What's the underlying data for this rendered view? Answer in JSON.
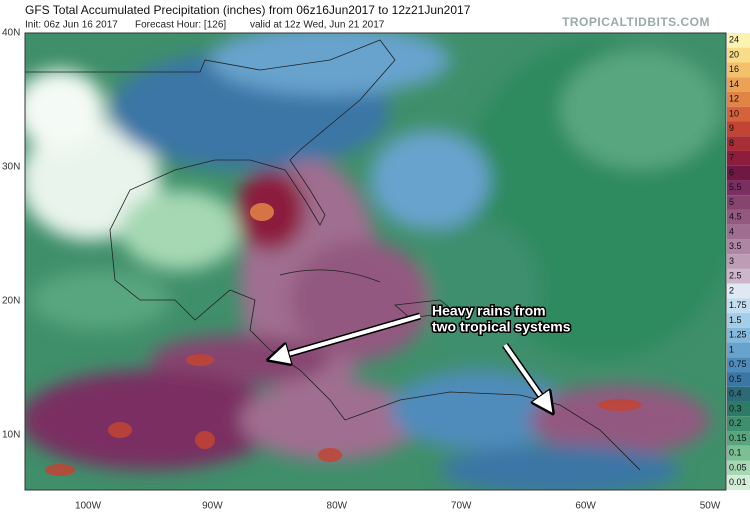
{
  "header": {
    "title": "GFS Total Accumulated Precipitation (inches) from 06z16Jun2017 to 12z21Jun2017",
    "init": "Init: 06z Jun 16 2017",
    "forecast_hour": "Forecast Hour: [126]",
    "valid": "valid at 12z Wed, Jun 21 2017",
    "watermark": "TROPICALTIDBITS.COM"
  },
  "map": {
    "lat_labels": [
      "40N",
      "30N",
      "20N",
      "10N"
    ],
    "lon_labels": [
      "100W",
      "90W",
      "80W",
      "70W",
      "60W",
      "50W"
    ],
    "annotation": [
      "Heavy rains from",
      "two tropical systems"
    ]
  },
  "colorbar": [
    {
      "label": "24",
      "color": "#fdf3b0"
    },
    {
      "label": "20",
      "color": "#f8dc8a"
    },
    {
      "label": "16",
      "color": "#f3c06c"
    },
    {
      "label": "14",
      "color": "#eca256"
    },
    {
      "label": "12",
      "color": "#e28446"
    },
    {
      "label": "10",
      "color": "#d4623b"
    },
    {
      "label": "9",
      "color": "#c24434"
    },
    {
      "label": "8",
      "color": "#a82d37"
    },
    {
      "label": "7",
      "color": "#8c1d3d"
    },
    {
      "label": "6",
      "color": "#701744"
    },
    {
      "label": "5.5",
      "color": "#7a2e62"
    },
    {
      "label": "5",
      "color": "#86446f"
    },
    {
      "label": "4.5",
      "color": "#93597f"
    },
    {
      "label": "4",
      "color": "#a06e90"
    },
    {
      "label": "3.5",
      "color": "#ae85a2"
    },
    {
      "label": "3",
      "color": "#bd9cb6"
    },
    {
      "label": "2.5",
      "color": "#cdb5cb"
    },
    {
      "label": "2",
      "color": "#dfe8f3"
    },
    {
      "label": "1.75",
      "color": "#c2def0"
    },
    {
      "label": "1.5",
      "color": "#a4cde8"
    },
    {
      "label": "1.25",
      "color": "#86b9dc"
    },
    {
      "label": "1",
      "color": "#68a3cd"
    },
    {
      "label": "0.75",
      "color": "#4f8cbb"
    },
    {
      "label": "0.5",
      "color": "#3a76a6"
    },
    {
      "label": "0.4",
      "color": "#2c6a78"
    },
    {
      "label": "0.3",
      "color": "#2f7a66"
    },
    {
      "label": "0.2",
      "color": "#3d8f6e"
    },
    {
      "label": "0.15",
      "color": "#58a67f"
    },
    {
      "label": "0.1",
      "color": "#7cbf95"
    },
    {
      "label": "0.05",
      "color": "#a6d8b4"
    },
    {
      "label": "0.01",
      "color": "#d3eed8"
    }
  ]
}
